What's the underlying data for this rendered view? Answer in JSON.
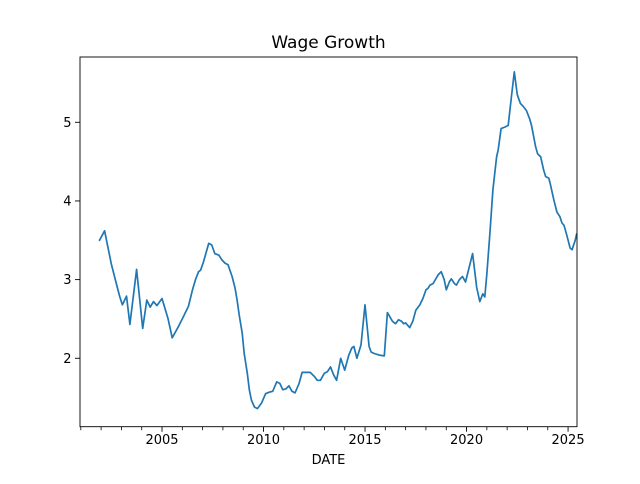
{
  "title": "Wage Growth",
  "chart_data": {
    "type": "line",
    "title": "Wage Growth",
    "xlabel": "DATE",
    "ylabel": "",
    "legend": "none",
    "grid": false,
    "line_color": "#1f77b4",
    "axis_color": "#000000",
    "xlim": [
      2000.96,
      2025.44
    ],
    "ylim": [
      1.13,
      5.83
    ],
    "x_major_ticks": [
      2005,
      2010,
      2015,
      2020,
      2025
    ],
    "x_tick_labels": [
      "2005",
      "2010",
      "2015",
      "2020",
      "2025"
    ],
    "x_minor_tick_step_years": 1,
    "y_ticks": [
      2,
      3,
      4,
      5
    ],
    "y_tick_labels": [
      "2",
      "3",
      "4",
      "5"
    ],
    "series": [
      {
        "name": "wage-growth",
        "points": [
          [
            2001.92,
            3.5
          ],
          [
            2002.17,
            3.62
          ],
          [
            2002.5,
            3.2
          ],
          [
            2002.75,
            2.95
          ],
          [
            2002.92,
            2.78
          ],
          [
            2003.05,
            2.68
          ],
          [
            2003.25,
            2.79
          ],
          [
            2003.42,
            2.43
          ],
          [
            2003.75,
            3.13
          ],
          [
            2004.05,
            2.38
          ],
          [
            2004.25,
            2.74
          ],
          [
            2004.42,
            2.65
          ],
          [
            2004.58,
            2.72
          ],
          [
            2004.75,
            2.67
          ],
          [
            2005.0,
            2.76
          ],
          [
            2005.3,
            2.5
          ],
          [
            2005.5,
            2.26
          ],
          [
            2005.8,
            2.4
          ],
          [
            2006.0,
            2.5
          ],
          [
            2006.3,
            2.66
          ],
          [
            2006.5,
            2.87
          ],
          [
            2006.65,
            3.0
          ],
          [
            2006.8,
            3.1
          ],
          [
            2006.9,
            3.12
          ],
          [
            2007.05,
            3.23
          ],
          [
            2007.3,
            3.46
          ],
          [
            2007.45,
            3.44
          ],
          [
            2007.6,
            3.33
          ],
          [
            2007.8,
            3.31
          ],
          [
            2007.95,
            3.25
          ],
          [
            2008.1,
            3.21
          ],
          [
            2008.25,
            3.19
          ],
          [
            2008.45,
            3.04
          ],
          [
            2008.6,
            2.89
          ],
          [
            2008.7,
            2.74
          ],
          [
            2008.8,
            2.55
          ],
          [
            2008.95,
            2.32
          ],
          [
            2009.05,
            2.06
          ],
          [
            2009.2,
            1.81
          ],
          [
            2009.3,
            1.6
          ],
          [
            2009.4,
            1.47
          ],
          [
            2009.55,
            1.38
          ],
          [
            2009.7,
            1.36
          ],
          [
            2009.9,
            1.43
          ],
          [
            2010.1,
            1.55
          ],
          [
            2010.3,
            1.57
          ],
          [
            2010.45,
            1.58
          ],
          [
            2010.65,
            1.7
          ],
          [
            2010.8,
            1.68
          ],
          [
            2010.95,
            1.6
          ],
          [
            2011.1,
            1.61
          ],
          [
            2011.25,
            1.65
          ],
          [
            2011.4,
            1.58
          ],
          [
            2011.55,
            1.56
          ],
          [
            2011.75,
            1.68
          ],
          [
            2011.9,
            1.82
          ],
          [
            2012.15,
            1.82
          ],
          [
            2012.3,
            1.82
          ],
          [
            2012.5,
            1.77
          ],
          [
            2012.65,
            1.72
          ],
          [
            2012.8,
            1.72
          ],
          [
            2013.0,
            1.81
          ],
          [
            2013.15,
            1.83
          ],
          [
            2013.3,
            1.89
          ],
          [
            2013.45,
            1.79
          ],
          [
            2013.6,
            1.72
          ],
          [
            2013.8,
            2.0
          ],
          [
            2014.0,
            1.85
          ],
          [
            2014.2,
            2.04
          ],
          [
            2014.35,
            2.13
          ],
          [
            2014.45,
            2.15
          ],
          [
            2014.6,
            2.0
          ],
          [
            2014.8,
            2.17
          ],
          [
            2015.0,
            2.68
          ],
          [
            2015.2,
            2.15
          ],
          [
            2015.3,
            2.08
          ],
          [
            2015.45,
            2.06
          ],
          [
            2015.7,
            2.04
          ],
          [
            2015.95,
            2.03
          ],
          [
            2016.1,
            2.58
          ],
          [
            2016.35,
            2.47
          ],
          [
            2016.5,
            2.44
          ],
          [
            2016.65,
            2.49
          ],
          [
            2016.8,
            2.47
          ],
          [
            2016.9,
            2.44
          ],
          [
            2017.0,
            2.45
          ],
          [
            2017.2,
            2.39
          ],
          [
            2017.35,
            2.47
          ],
          [
            2017.5,
            2.61
          ],
          [
            2017.7,
            2.68
          ],
          [
            2017.85,
            2.76
          ],
          [
            2018.0,
            2.87
          ],
          [
            2018.1,
            2.89
          ],
          [
            2018.2,
            2.93
          ],
          [
            2018.35,
            2.95
          ],
          [
            2018.6,
            3.06
          ],
          [
            2018.75,
            3.1
          ],
          [
            2018.9,
            3.0
          ],
          [
            2019.0,
            2.87
          ],
          [
            2019.15,
            2.97
          ],
          [
            2019.25,
            3.01
          ],
          [
            2019.4,
            2.95
          ],
          [
            2019.5,
            2.93
          ],
          [
            2019.65,
            3.0
          ],
          [
            2019.8,
            3.04
          ],
          [
            2019.95,
            2.97
          ],
          [
            2020.3,
            3.33
          ],
          [
            2020.5,
            2.9
          ],
          [
            2020.65,
            2.72
          ],
          [
            2020.8,
            2.82
          ],
          [
            2020.9,
            2.78
          ],
          [
            2021.0,
            3.08
          ],
          [
            2021.15,
            3.59
          ],
          [
            2021.3,
            4.14
          ],
          [
            2021.48,
            4.56
          ],
          [
            2021.56,
            4.65
          ],
          [
            2021.7,
            4.92
          ],
          [
            2021.9,
            4.94
          ],
          [
            2022.05,
            4.96
          ],
          [
            2022.2,
            5.3
          ],
          [
            2022.35,
            5.64
          ],
          [
            2022.5,
            5.35
          ],
          [
            2022.65,
            5.24
          ],
          [
            2022.8,
            5.2
          ],
          [
            2022.95,
            5.15
          ],
          [
            2023.1,
            5.05
          ],
          [
            2023.2,
            4.96
          ],
          [
            2023.4,
            4.69
          ],
          [
            2023.5,
            4.6
          ],
          [
            2023.65,
            4.56
          ],
          [
            2023.8,
            4.39
          ],
          [
            2023.9,
            4.31
          ],
          [
            2024.05,
            4.29
          ],
          [
            2024.12,
            4.22
          ],
          [
            2024.3,
            4.01
          ],
          [
            2024.45,
            3.86
          ],
          [
            2024.6,
            3.8
          ],
          [
            2024.7,
            3.72
          ],
          [
            2024.8,
            3.69
          ],
          [
            2024.95,
            3.55
          ],
          [
            2025.1,
            3.4
          ],
          [
            2025.2,
            3.38
          ],
          [
            2025.35,
            3.5
          ],
          [
            2025.42,
            3.58
          ]
        ]
      }
    ]
  }
}
